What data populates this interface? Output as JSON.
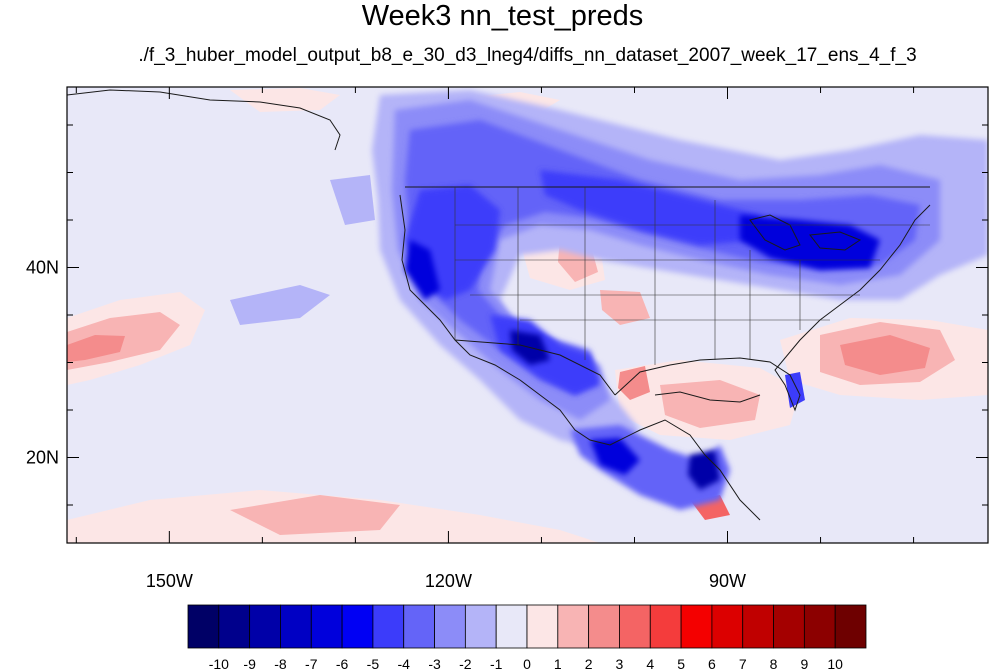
{
  "title": "Week3 nn_test_preds",
  "subtitle": "./f_3_huber_model_output_b8_e_30_d3_lneg4/diffs_nn_dataset_2007_week_17_ens_4_f_3",
  "map": {
    "lon_range": [
      -161,
      -62
    ],
    "lat_range": [
      11,
      59
    ],
    "lat_ticks": [
      {
        "value": 40,
        "label": "40N"
      },
      {
        "value": 20,
        "label": "20N"
      }
    ],
    "lon_ticks": [
      {
        "value": -150,
        "label": "150W"
      },
      {
        "value": -120,
        "label": "120W"
      },
      {
        "value": -90,
        "label": "90W"
      }
    ],
    "background_color": "#e8e8f8"
  },
  "colorbar": {
    "labels": [
      "-10",
      "-9",
      "-8",
      "-7",
      "-6",
      "-5",
      "-4",
      "-3",
      "-2",
      "-1",
      "0",
      "1",
      "2",
      "3",
      "4",
      "5",
      "6",
      "7",
      "8",
      "9",
      "10"
    ],
    "colors": [
      "#000066",
      "#00008c",
      "#0000a8",
      "#0000c4",
      "#0000dc",
      "#0000f4",
      "#3c3cfa",
      "#6464f8",
      "#8c8cf8",
      "#b4b4f8",
      "#e8e8f8",
      "#fce6e6",
      "#f8b4b4",
      "#f48c8c",
      "#f46464",
      "#f43c3c",
      "#f40000",
      "#dc0000",
      "#c00000",
      "#a40000",
      "#8c0000",
      "#6e0000"
    ]
  }
}
